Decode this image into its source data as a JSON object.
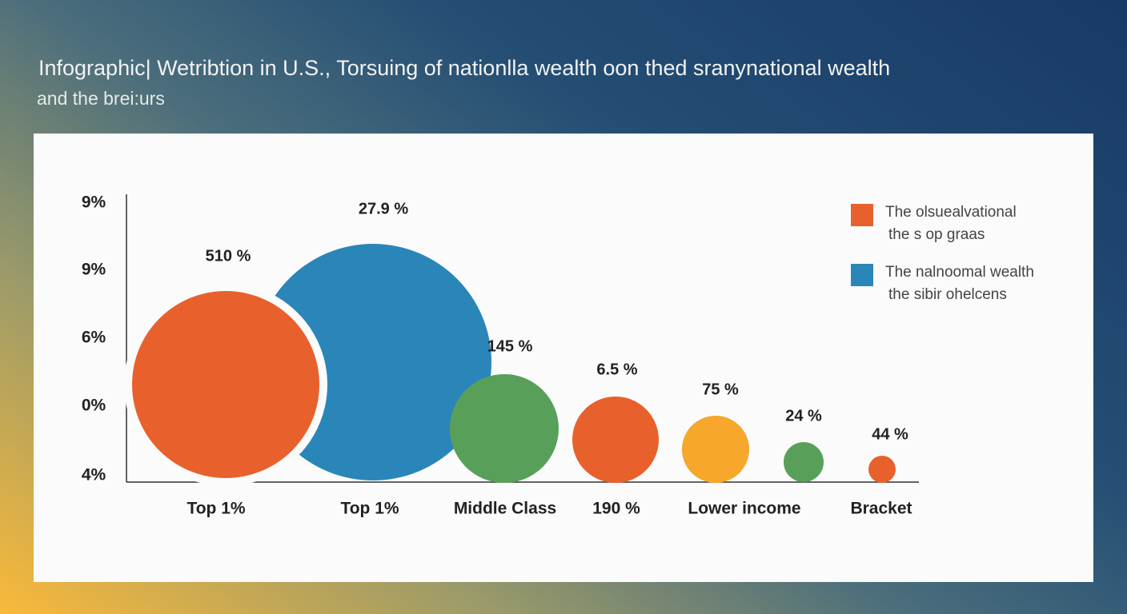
{
  "header": {
    "title": "Infographic| Wetribtion in U.S., Torsuing of nationlla wealth oon thed sranynational wealth",
    "subtitle": "and the brei:urs"
  },
  "chart": {
    "y_labels": [
      "9%",
      "9%",
      "6%",
      "0%",
      "4%"
    ],
    "bubbles": [
      {
        "label": "510 %",
        "category": "Top 1%",
        "color": "#e8612c"
      },
      {
        "label": "27.9 %",
        "category": "Top 1%",
        "color": "#2a86b8"
      },
      {
        "label": "145 %",
        "category": "Middle Class",
        "color": "#58a05a"
      },
      {
        "label": "6.5 %",
        "category": "190 %",
        "color": "#e8612c"
      },
      {
        "label": "75 %",
        "category": "Lower income",
        "color": "#f6a72c"
      },
      {
        "label": "24 %",
        "category": "",
        "color": "#58a05a"
      },
      {
        "label": "44 %",
        "category": "Bracket",
        "color": "#e8612c"
      }
    ],
    "legend": [
      {
        "lines": [
          "The olsuealvational",
          "the s op graas"
        ],
        "color": "#e8612c"
      },
      {
        "lines": [
          "The nalnoomal wealth",
          "the sibir ohelcens"
        ],
        "color": "#2a86b8"
      }
    ]
  }
}
